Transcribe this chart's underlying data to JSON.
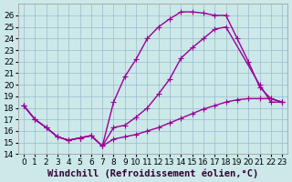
{
  "xlabel": "Windchill (Refroidissement éolien,°C)",
  "bg_color": "#cce8e8",
  "grid_color": "#99bbcc",
  "line_color": "#990099",
  "xlim": [
    -0.5,
    23.5
  ],
  "ylim": [
    14,
    27
  ],
  "yticks": [
    14,
    15,
    16,
    17,
    18,
    19,
    20,
    21,
    22,
    23,
    24,
    25,
    26
  ],
  "xticks": [
    0,
    1,
    2,
    3,
    4,
    5,
    6,
    7,
    8,
    9,
    10,
    11,
    12,
    13,
    14,
    15,
    16,
    17,
    18,
    19,
    20,
    21,
    22,
    23
  ],
  "line1_x": [
    0,
    1,
    2,
    3,
    4,
    5,
    6,
    7,
    8,
    9,
    10,
    11,
    12,
    13,
    14,
    15,
    16,
    17,
    18,
    19,
    20,
    21,
    22,
    23
  ],
  "line1_y": [
    18.2,
    17.0,
    16.3,
    15.5,
    15.2,
    15.4,
    15.6,
    14.7,
    18.5,
    20.7,
    22.2,
    24.0,
    25.0,
    25.7,
    26.3,
    26.3,
    26.2,
    26.0,
    26.0,
    24.0,
    22.0,
    19.8,
    18.8,
    18.5
  ],
  "line2_x": [
    0,
    1,
    2,
    3,
    4,
    5,
    6,
    7,
    8,
    9,
    10,
    11,
    12,
    13,
    14,
    15,
    16,
    17,
    18,
    21,
    22,
    23
  ],
  "line2_y": [
    18.2,
    17.0,
    16.3,
    15.5,
    15.2,
    15.4,
    15.6,
    14.7,
    16.3,
    16.5,
    17.2,
    18.0,
    19.2,
    20.5,
    22.3,
    23.2,
    24.0,
    24.8,
    25.0,
    20.0,
    18.5,
    18.5
  ],
  "line3_x": [
    0,
    1,
    2,
    3,
    4,
    5,
    6,
    7,
    8,
    9,
    10,
    11,
    12,
    13,
    14,
    15,
    16,
    17,
    18,
    19,
    20,
    21,
    22,
    23
  ],
  "line3_y": [
    18.2,
    17.0,
    16.3,
    15.5,
    15.2,
    15.4,
    15.6,
    14.7,
    15.3,
    15.5,
    15.7,
    16.0,
    16.3,
    16.7,
    17.1,
    17.5,
    17.9,
    18.2,
    18.5,
    18.7,
    18.8,
    18.8,
    18.8,
    18.5
  ],
  "markersize": 4,
  "linewidth": 1.0,
  "fontsize_xlabel": 7.5,
  "fontsize_ticks": 6.5
}
